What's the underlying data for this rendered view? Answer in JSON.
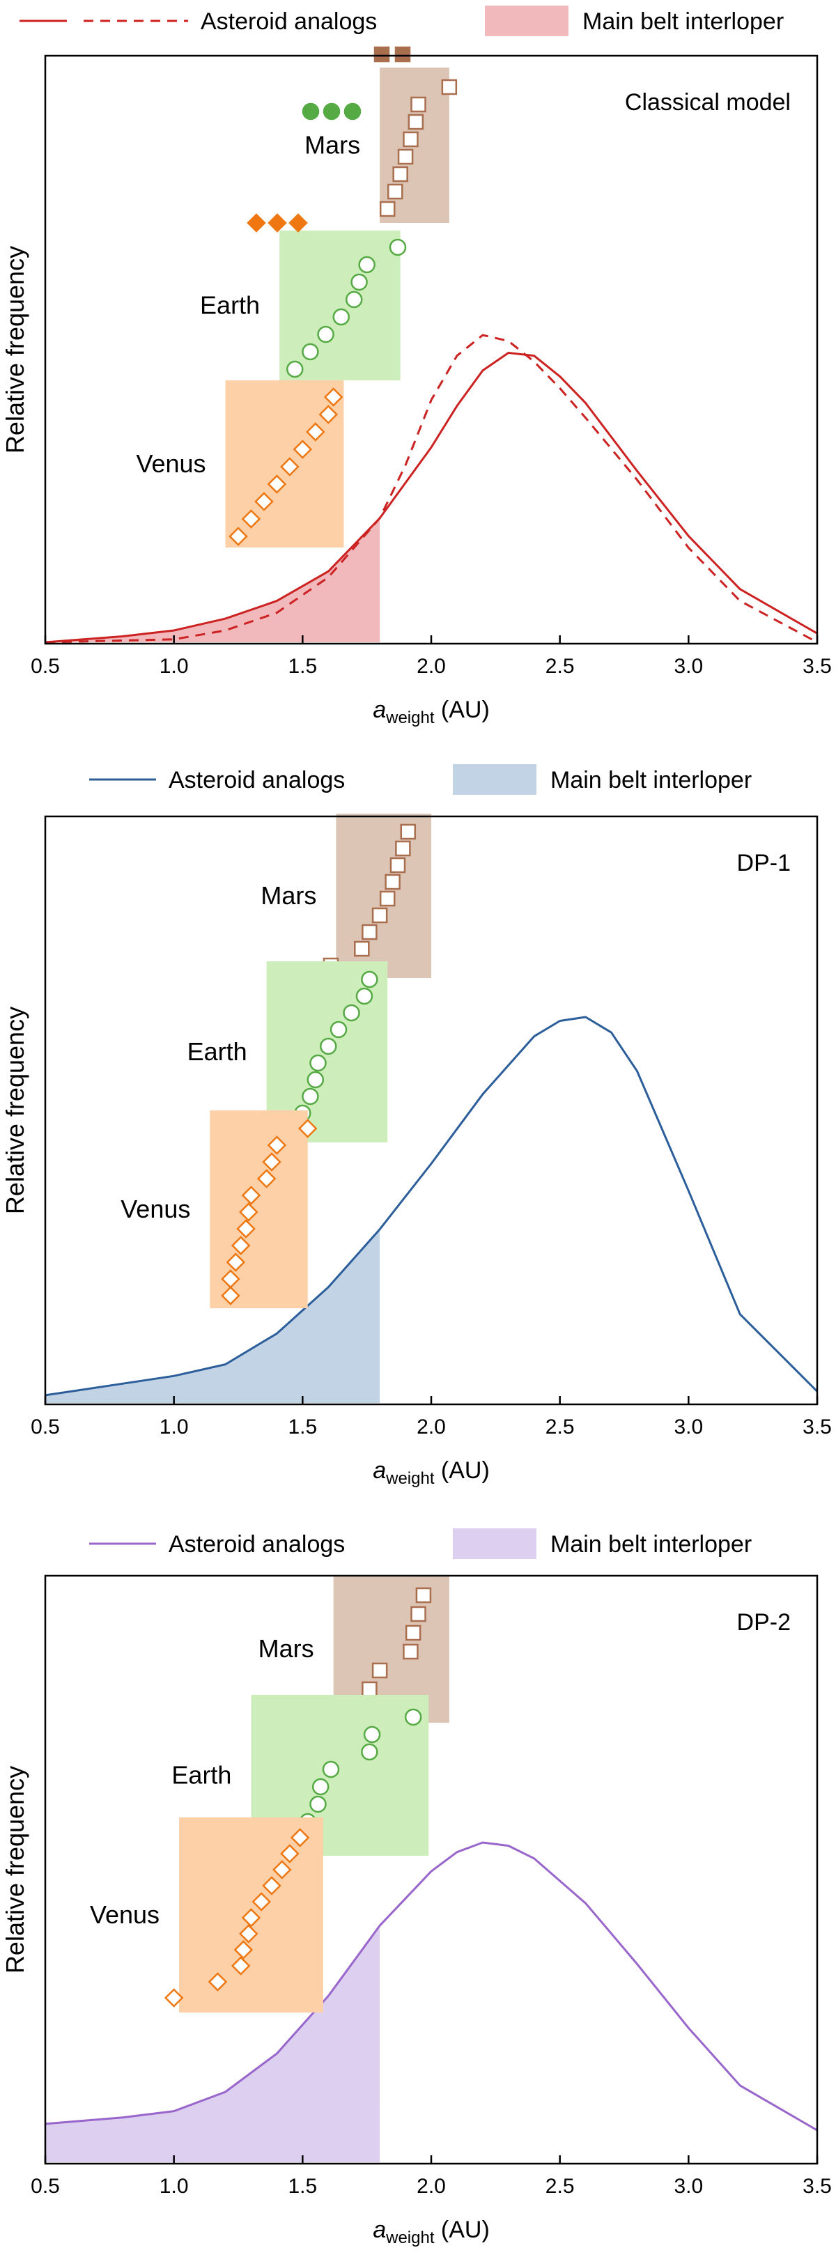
{
  "chart_data": [
    {
      "type": "line",
      "label": "Classical model",
      "xlabel_main": "a",
      "xlabel_sub": "weight",
      "xlabel_unit": " (AU)",
      "ylabel": "Relative frequency",
      "xlim": [
        0.5,
        3.5
      ],
      "xticks": [
        "0.5",
        "1.0",
        "1.5",
        "2.0",
        "2.5",
        "3.0",
        "3.5"
      ],
      "grid": false,
      "legend_position": "top, outside plot",
      "legend": [
        "Asteroid analogs",
        "Main belt interloper"
      ],
      "color": "#cc2222",
      "fill_color": "#f2b9bd",
      "interloper_cutoff": 1.8,
      "series": [
        {
          "name": "Asteroid analogs",
          "style": "solid",
          "x": [
            0.5,
            0.8,
            1.0,
            1.2,
            1.4,
            1.6,
            1.8,
            2.0,
            2.1,
            2.2,
            2.3,
            2.4,
            2.5,
            2.6,
            2.8,
            3.0,
            3.2,
            3.5
          ],
          "y": [
            0.0,
            0.02,
            0.04,
            0.08,
            0.14,
            0.24,
            0.42,
            0.66,
            0.8,
            0.92,
            0.98,
            0.97,
            0.9,
            0.81,
            0.58,
            0.36,
            0.18,
            0.03
          ]
        },
        {
          "name": "",
          "style": "dashed",
          "x": [
            0.5,
            1.0,
            1.2,
            1.4,
            1.6,
            1.8,
            1.9,
            2.0,
            2.1,
            2.2,
            2.3,
            2.4,
            2.5,
            2.6,
            2.8,
            3.0,
            3.2,
            3.5
          ],
          "y": [
            0.0,
            0.01,
            0.04,
            0.1,
            0.22,
            0.42,
            0.6,
            0.82,
            0.97,
            1.04,
            1.02,
            0.95,
            0.86,
            0.76,
            0.55,
            0.32,
            0.14,
            0.0
          ]
        }
      ],
      "planets": [
        {
          "name": "Mars",
          "marker": "square",
          "color": "#a86e4e",
          "box_color": "#dcc5b5",
          "legend_markers": 2,
          "box_x": [
            1.8,
            2.07
          ],
          "points": [
            [
              1.83,
              1
            ],
            [
              1.86,
              2
            ],
            [
              1.88,
              3
            ],
            [
              1.9,
              4
            ],
            [
              1.92,
              5
            ],
            [
              1.94,
              6
            ],
            [
              1.95,
              7
            ],
            [
              2.07,
              8
            ]
          ]
        },
        {
          "name": "Earth",
          "marker": "circle",
          "color": "#55aa44",
          "box_color": "#cdeebb",
          "legend_markers": 3,
          "box_x": [
            1.41,
            1.88
          ],
          "points": [
            [
              1.47,
              1
            ],
            [
              1.53,
              2
            ],
            [
              1.59,
              3
            ],
            [
              1.65,
              4
            ],
            [
              1.7,
              5
            ],
            [
              1.72,
              6
            ],
            [
              1.75,
              7
            ],
            [
              1.87,
              8
            ]
          ]
        },
        {
          "name": "Venus",
          "marker": "diamond",
          "color": "#ee7711",
          "box_color": "#fdd0a8",
          "legend_markers": 3,
          "box_x": [
            1.2,
            1.66
          ],
          "points": [
            [
              1.25,
              1
            ],
            [
              1.3,
              2
            ],
            [
              1.35,
              3
            ],
            [
              1.4,
              4
            ],
            [
              1.45,
              5
            ],
            [
              1.5,
              6
            ],
            [
              1.55,
              7
            ],
            [
              1.6,
              8
            ],
            [
              1.62,
              9
            ]
          ]
        }
      ]
    },
    {
      "type": "line",
      "label": "DP-1",
      "xlabel_main": "a",
      "xlabel_sub": "weight",
      "xlabel_unit": " (AU)",
      "ylabel": "Relative frequency",
      "xlim": [
        0.5,
        3.5
      ],
      "xticks": [
        "0.5",
        "1.0",
        "1.5",
        "2.0",
        "2.5",
        "3.0",
        "3.5"
      ],
      "grid": false,
      "legend_position": "top, outside plot",
      "legend": [
        "Asteroid analogs",
        "Main belt interloper"
      ],
      "color": "#2b5e9a",
      "fill_color": "#c2d3e6",
      "interloper_cutoff": 1.8,
      "series": [
        {
          "name": "Asteroid analogs",
          "style": "solid",
          "x": [
            0.5,
            0.8,
            1.0,
            1.2,
            1.4,
            1.6,
            1.8,
            2.0,
            2.2,
            2.4,
            2.5,
            2.6,
            2.7,
            2.8,
            3.0,
            3.2,
            3.5
          ],
          "y": [
            0.02,
            0.05,
            0.07,
            0.1,
            0.18,
            0.3,
            0.45,
            0.62,
            0.8,
            0.95,
            0.99,
            1.0,
            0.96,
            0.86,
            0.55,
            0.23,
            0.03
          ]
        }
      ],
      "planets": [
        {
          "name": "Mars",
          "marker": "square",
          "color": "#a86e4e",
          "box_color": "#dcc5b5",
          "legend_markers": 0,
          "box_x": [
            1.63,
            2.0
          ],
          "points": [
            [
              1.61,
              1
            ],
            [
              1.73,
              2
            ],
            [
              1.76,
              3
            ],
            [
              1.8,
              4
            ],
            [
              1.83,
              5
            ],
            [
              1.85,
              6
            ],
            [
              1.87,
              7
            ],
            [
              1.89,
              8
            ],
            [
              1.91,
              9
            ]
          ]
        },
        {
          "name": "Earth",
          "marker": "circle",
          "color": "#55aa44",
          "box_color": "#cdeebb",
          "legend_markers": 0,
          "box_x": [
            1.36,
            1.83
          ],
          "points": [
            [
              1.36,
              1
            ],
            [
              1.5,
              2
            ],
            [
              1.53,
              3
            ],
            [
              1.55,
              4
            ],
            [
              1.56,
              5
            ],
            [
              1.6,
              6
            ],
            [
              1.64,
              7
            ],
            [
              1.69,
              8
            ],
            [
              1.74,
              9
            ],
            [
              1.76,
              10
            ]
          ]
        },
        {
          "name": "Venus",
          "marker": "diamond",
          "color": "#ee7711",
          "box_color": "#fdd0a8",
          "legend_markers": 0,
          "box_x": [
            1.14,
            1.52
          ],
          "points": [
            [
              1.22,
              1
            ],
            [
              1.22,
              2
            ],
            [
              1.24,
              3
            ],
            [
              1.26,
              4
            ],
            [
              1.28,
              5
            ],
            [
              1.29,
              6
            ],
            [
              1.3,
              7
            ],
            [
              1.36,
              8
            ],
            [
              1.38,
              9
            ],
            [
              1.4,
              10
            ],
            [
              1.52,
              11
            ]
          ]
        }
      ]
    },
    {
      "type": "line",
      "label": "DP-2",
      "xlabel_main": "a",
      "xlabel_sub": "weight",
      "xlabel_unit": " (AU)",
      "ylabel": "Relative frequency",
      "xlim": [
        0.5,
        3.5
      ],
      "xticks": [
        "0.5",
        "1.0",
        "1.5",
        "2.0",
        "2.5",
        "3.0",
        "3.5"
      ],
      "grid": false,
      "legend_position": "top, outside plot",
      "legend": [
        "Asteroid analogs",
        "Main belt interloper"
      ],
      "color": "#9966cc",
      "fill_color": "#dccfef",
      "interloper_cutoff": 1.8,
      "series": [
        {
          "name": "Asteroid analogs",
          "style": "solid",
          "x": [
            0.5,
            0.8,
            1.0,
            1.2,
            1.4,
            1.6,
            1.8,
            2.0,
            2.1,
            2.2,
            2.3,
            2.4,
            2.6,
            2.8,
            3.0,
            3.2,
            3.5
          ],
          "y": [
            0.12,
            0.14,
            0.16,
            0.22,
            0.34,
            0.52,
            0.74,
            0.91,
            0.97,
            1.0,
            0.99,
            0.95,
            0.81,
            0.62,
            0.42,
            0.24,
            0.1
          ]
        }
      ],
      "planets": [
        {
          "name": "Mars",
          "marker": "square",
          "color": "#a86e4e",
          "box_color": "#dcc5b5",
          "legend_markers": 0,
          "box_x": [
            1.62,
            2.07
          ],
          "points": [
            [
              1.73,
              1
            ],
            [
              1.76,
              2
            ],
            [
              1.8,
              3
            ],
            [
              1.92,
              4
            ],
            [
              1.93,
              5
            ],
            [
              1.95,
              6
            ],
            [
              1.97,
              7
            ]
          ]
        },
        {
          "name": "Earth",
          "marker": "circle",
          "color": "#55aa44",
          "box_color": "#cdeebb",
          "legend_markers": 0,
          "box_x": [
            1.3,
            1.99
          ],
          "points": [
            [
              1.39,
              1
            ],
            [
              1.52,
              2
            ],
            [
              1.56,
              3
            ],
            [
              1.57,
              4
            ],
            [
              1.61,
              5
            ],
            [
              1.76,
              6
            ],
            [
              1.77,
              7
            ],
            [
              1.93,
              8
            ]
          ]
        },
        {
          "name": "Venus",
          "marker": "diamond",
          "color": "#ee7711",
          "box_color": "#fdd0a8",
          "legend_markers": 0,
          "box_x": [
            1.02,
            1.58
          ],
          "points": [
            [
              1.0,
              1
            ],
            [
              1.17,
              2
            ],
            [
              1.26,
              3
            ],
            [
              1.27,
              4
            ],
            [
              1.29,
              5
            ],
            [
              1.3,
              6
            ],
            [
              1.34,
              7
            ],
            [
              1.38,
              8
            ],
            [
              1.42,
              9
            ],
            [
              1.45,
              10
            ],
            [
              1.49,
              11
            ]
          ]
        }
      ]
    }
  ]
}
